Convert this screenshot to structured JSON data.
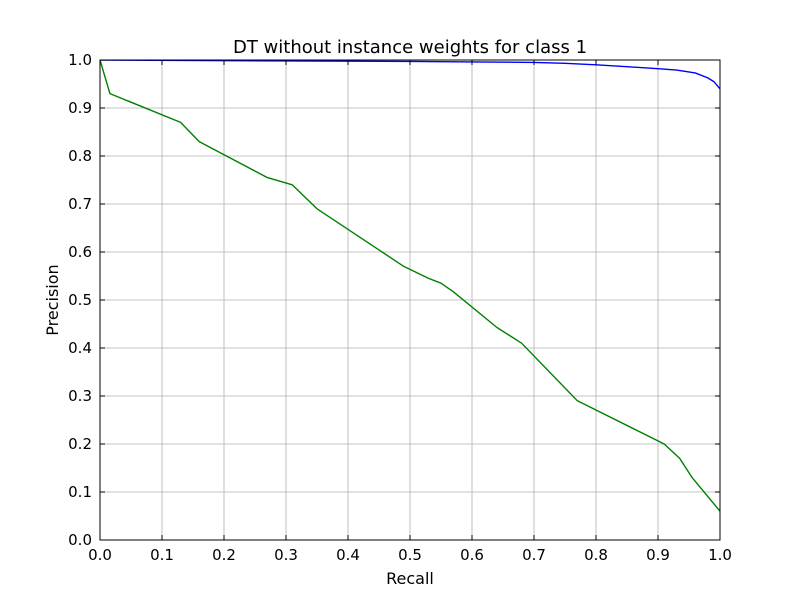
{
  "chart_data": {
    "type": "line",
    "title": "DT without instance weights for class 1",
    "xlabel": "Recall",
    "ylabel": "Precision",
    "xlim": [
      0.0,
      1.0
    ],
    "ylim": [
      0.0,
      1.0
    ],
    "xticks": [
      "0.0",
      "0.1",
      "0.2",
      "0.3",
      "0.4",
      "0.5",
      "0.6",
      "0.7",
      "0.8",
      "0.9",
      "1.0"
    ],
    "yticks": [
      "0.0",
      "0.1",
      "0.2",
      "0.3",
      "0.4",
      "0.5",
      "0.6",
      "0.7",
      "0.8",
      "0.9",
      "1.0"
    ],
    "grid": true,
    "legend": "none",
    "series": [
      {
        "color": "#0000ff",
        "x": [
          0.0,
          0.3,
          0.5,
          0.6,
          0.7,
          0.75,
          0.8,
          0.85,
          0.9,
          0.93,
          0.96,
          0.98,
          0.99,
          1.0
        ],
        "y": [
          1.0,
          0.998,
          0.997,
          0.996,
          0.995,
          0.993,
          0.99,
          0.986,
          0.982,
          0.979,
          0.973,
          0.963,
          0.955,
          0.94
        ]
      },
      {
        "color": "#008000",
        "x": [
          0.0,
          0.016,
          0.13,
          0.16,
          0.27,
          0.31,
          0.35,
          0.49,
          0.53,
          0.55,
          0.57,
          0.64,
          0.68,
          0.77,
          0.91,
          0.935,
          0.955,
          1.0
        ],
        "y": [
          1.0,
          0.93,
          0.87,
          0.83,
          0.755,
          0.74,
          0.69,
          0.57,
          0.545,
          0.535,
          0.517,
          0.443,
          0.41,
          0.29,
          0.2,
          0.17,
          0.13,
          0.06
        ]
      }
    ]
  }
}
